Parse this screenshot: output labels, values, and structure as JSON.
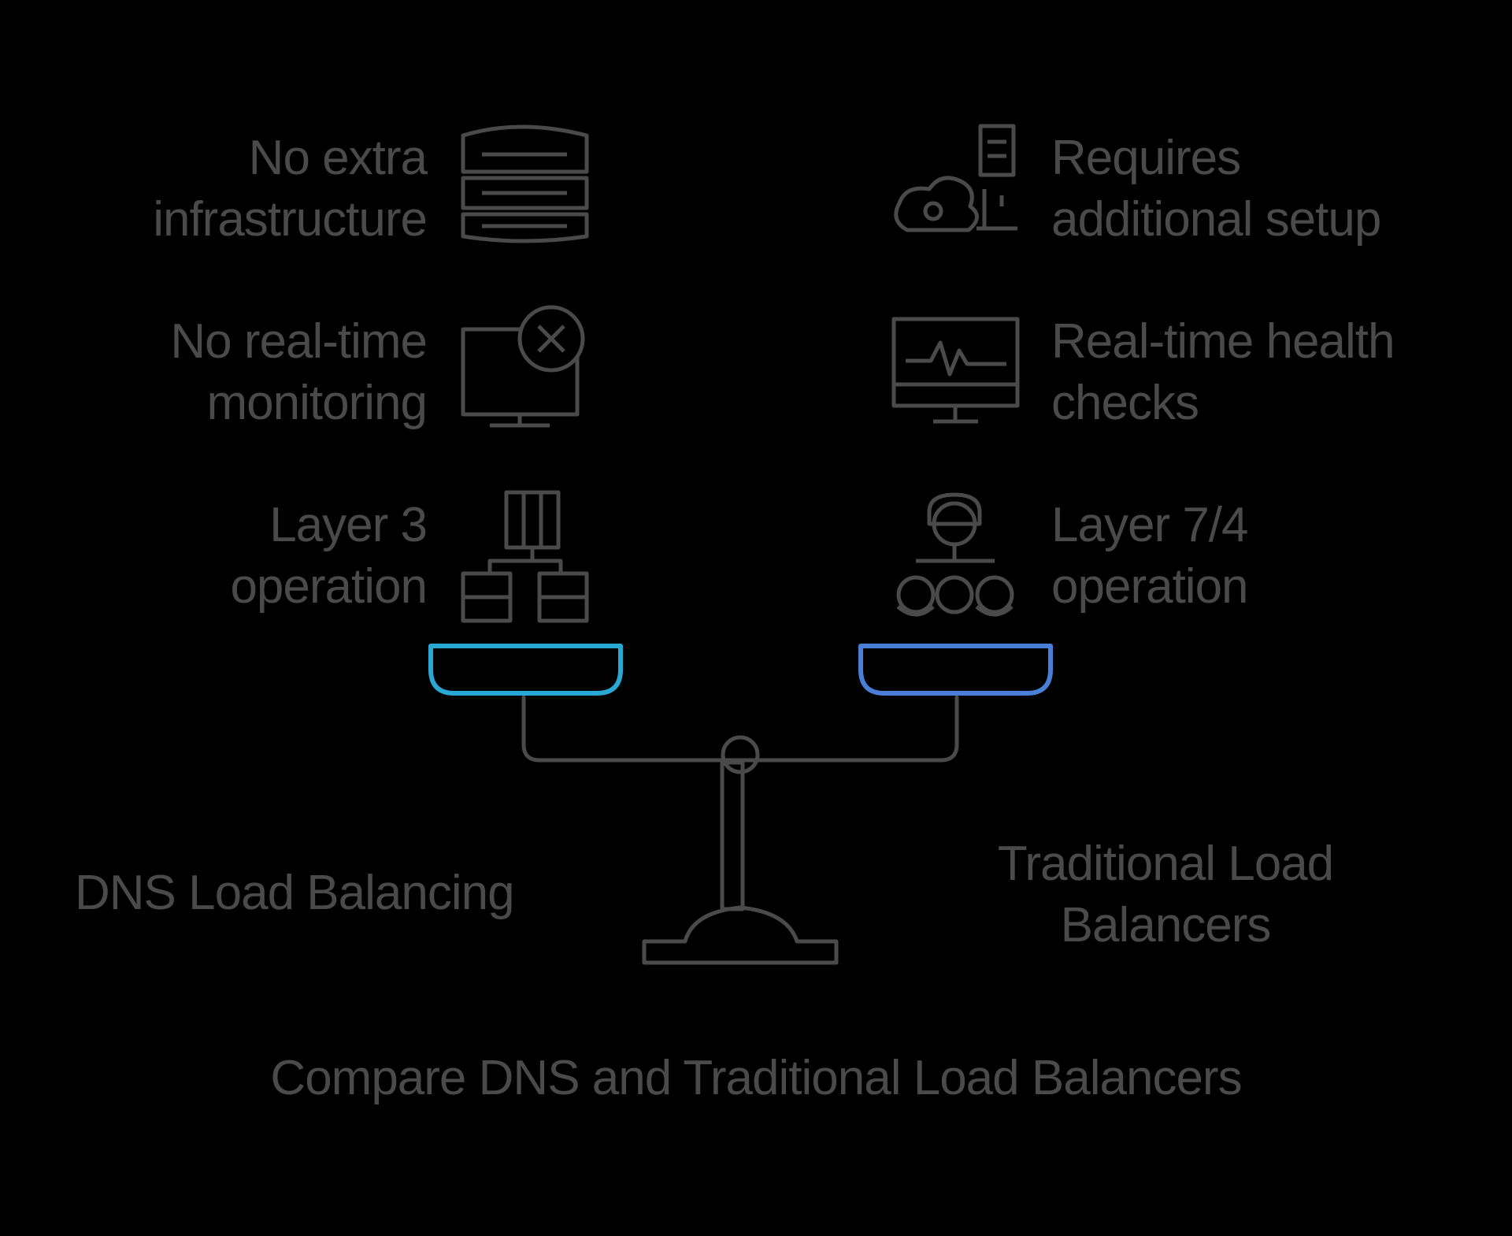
{
  "title": "Compare DNS and Traditional Load Balancers",
  "left_side": {
    "name": "DNS Load Balancing",
    "accent_color": "#29a8d4",
    "items": [
      {
        "icon": "server-stack-icon",
        "lines": [
          "No extra",
          "infrastructure"
        ]
      },
      {
        "icon": "monitor-x-icon",
        "lines": [
          "No real-time",
          "monitoring"
        ]
      },
      {
        "icon": "layer3-network-icon",
        "lines": [
          "Layer 3",
          "operation"
        ]
      }
    ]
  },
  "right_side": {
    "name_lines": [
      "Traditional Load",
      "Balancers"
    ],
    "accent_color": "#4a7fd8",
    "items": [
      {
        "icon": "cloud-setup-icon",
        "lines": [
          "Requires",
          "additional setup"
        ]
      },
      {
        "icon": "monitor-heartbeat-icon",
        "lines": [
          "Real-time health",
          "checks"
        ]
      },
      {
        "icon": "user-network-icon",
        "lines": [
          "Layer 7/4",
          "operation"
        ]
      }
    ]
  },
  "colors": {
    "background": "#000000",
    "ink": "#4a4a4a",
    "left_pan": "#29a8d4",
    "right_pan": "#4a7fd8"
  }
}
